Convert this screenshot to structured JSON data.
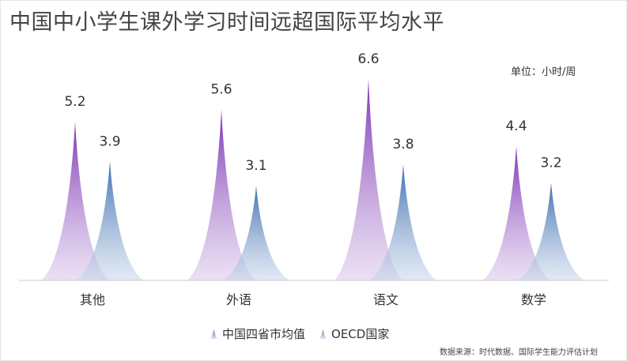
{
  "title": "中国中小学生课外学习时间远超国际平均水平",
  "unit_label": "单位：小时/周",
  "source_note": "数据来源：时代数据、国际学生能力评估计划",
  "colors": {
    "china": "#8a44b8",
    "oecd": "#4a78b4"
  },
  "chart_data": {
    "type": "bar",
    "categories": [
      "其他",
      "外语",
      "语文",
      "数学"
    ],
    "series": [
      {
        "name": "中国四省市均值",
        "values": [
          5.2,
          5.6,
          6.6,
          4.4
        ]
      },
      {
        "name": "OECD国家",
        "values": [
          3.9,
          3.1,
          3.8,
          3.2
        ]
      }
    ],
    "ylim": [
      0,
      6.6
    ],
    "legend_position": "bottom",
    "grid": false
  }
}
